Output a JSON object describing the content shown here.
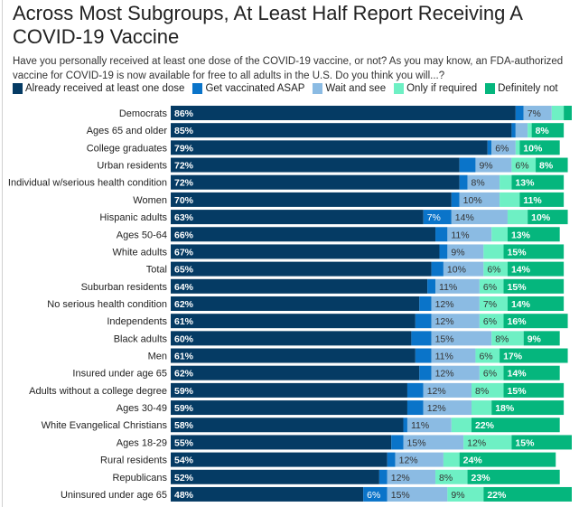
{
  "header": {
    "title": "Across Most Subgroups, At Least Half Report Receiving A COVID-19 Vaccine",
    "subtitle": "Have you personally received at least one dose of the COVID-19 vaccine, or not? As you may know, an FDA-authorized vaccine for COVID-19 is now available for free to all adults in the U.S. Do you think you will...?"
  },
  "chart_data": {
    "type": "bar",
    "orientation": "horizontal",
    "stacked": true,
    "title": "Across Most Subgroups, At Least Half Report Receiving A COVID-19 Vaccine",
    "xlabel": "",
    "ylabel": "",
    "xlim": [
      0,
      100
    ],
    "legend_position": "top-left",
    "categories": [
      "Democrats",
      "Ages 65 and older",
      "College graduates",
      "Urban residents",
      "Individual w/serious health condition",
      "Women",
      "Hispanic adults",
      "Ages 50-64",
      "White adults",
      "Total",
      "Suburban residents",
      "No serious health condition",
      "Independents",
      "Black adults",
      "Men",
      "Insured under age 65",
      "Adults without a college degree",
      "Ages 30-49",
      "White Evangelical Christians",
      "Ages 18-29",
      "Rural residents",
      "Republicans",
      "Uninsured under age 65"
    ],
    "series": [
      {
        "name": "Already received at least one dose",
        "color": "#053b64",
        "label_color": "#ffffff",
        "values": [
          86,
          85,
          79,
          72,
          72,
          70,
          63,
          66,
          67,
          65,
          64,
          62,
          61,
          60,
          61,
          62,
          59,
          59,
          58,
          55,
          54,
          52,
          48
        ],
        "shown_labels": [
          "86%",
          "85%",
          "79%",
          "72%",
          "72%",
          "70%",
          "63%",
          "66%",
          "67%",
          "65%",
          "64%",
          "62%",
          "61%",
          "60%",
          "61%",
          "62%",
          "59%",
          "59%",
          "58%",
          "55%",
          "54%",
          "52%",
          "48%"
        ]
      },
      {
        "name": "Get vaccinated ASAP",
        "color": "#0a74c9",
        "label_color": "#ffffff",
        "values": [
          2,
          1,
          1,
          4,
          2,
          2,
          7,
          3,
          2,
          3,
          2,
          3,
          4,
          5,
          4,
          3,
          4,
          4,
          1,
          3,
          2,
          2,
          6
        ],
        "shown_labels": [
          null,
          null,
          null,
          null,
          null,
          null,
          "7%",
          null,
          null,
          null,
          null,
          null,
          null,
          null,
          null,
          null,
          null,
          null,
          null,
          null,
          null,
          null,
          "6%"
        ]
      },
      {
        "name": "Wait and see",
        "color": "#8bbbe3",
        "label_color": "#333333",
        "values": [
          7,
          3,
          6,
          9,
          8,
          10,
          14,
          11,
          9,
          10,
          11,
          12,
          12,
          15,
          11,
          12,
          12,
          12,
          11,
          15,
          12,
          12,
          15
        ],
        "shown_labels": [
          "7%",
          null,
          "6%",
          "9%",
          "8%",
          "10%",
          "14%",
          "11%",
          "9%",
          "10%",
          "11%",
          "12%",
          "12%",
          "15%",
          "11%",
          "12%",
          "12%",
          "12%",
          "11%",
          "15%",
          "12%",
          "12%",
          "15%"
        ]
      },
      {
        "name": "Only if required",
        "color": "#6ef0c4",
        "label_color": "#333333",
        "values": [
          3,
          1,
          1,
          6,
          3,
          5,
          5,
          4,
          5,
          6,
          6,
          7,
          6,
          8,
          6,
          6,
          8,
          5,
          5,
          12,
          4,
          8,
          9
        ],
        "shown_labels": [
          null,
          null,
          null,
          "6%",
          null,
          null,
          null,
          null,
          null,
          "6%",
          "6%",
          "7%",
          "6%",
          "8%",
          "6%",
          "6%",
          "8%",
          null,
          null,
          "12%",
          null,
          "8%",
          "9%"
        ]
      },
      {
        "name": "Definitely not",
        "color": "#05b67d",
        "label_color": "#ffffff",
        "values": [
          2,
          8,
          10,
          8,
          13,
          11,
          10,
          13,
          15,
          14,
          15,
          14,
          16,
          9,
          17,
          14,
          15,
          18,
          22,
          15,
          24,
          23,
          22
        ],
        "shown_labels": [
          null,
          "8%",
          "10%",
          "8%",
          "13%",
          "11%",
          "10%",
          "13%",
          "15%",
          "14%",
          "15%",
          "14%",
          "16%",
          "9%",
          "17%",
          "14%",
          "15%",
          "18%",
          "22%",
          "15%",
          "24%",
          "23%",
          "22%"
        ]
      }
    ]
  }
}
